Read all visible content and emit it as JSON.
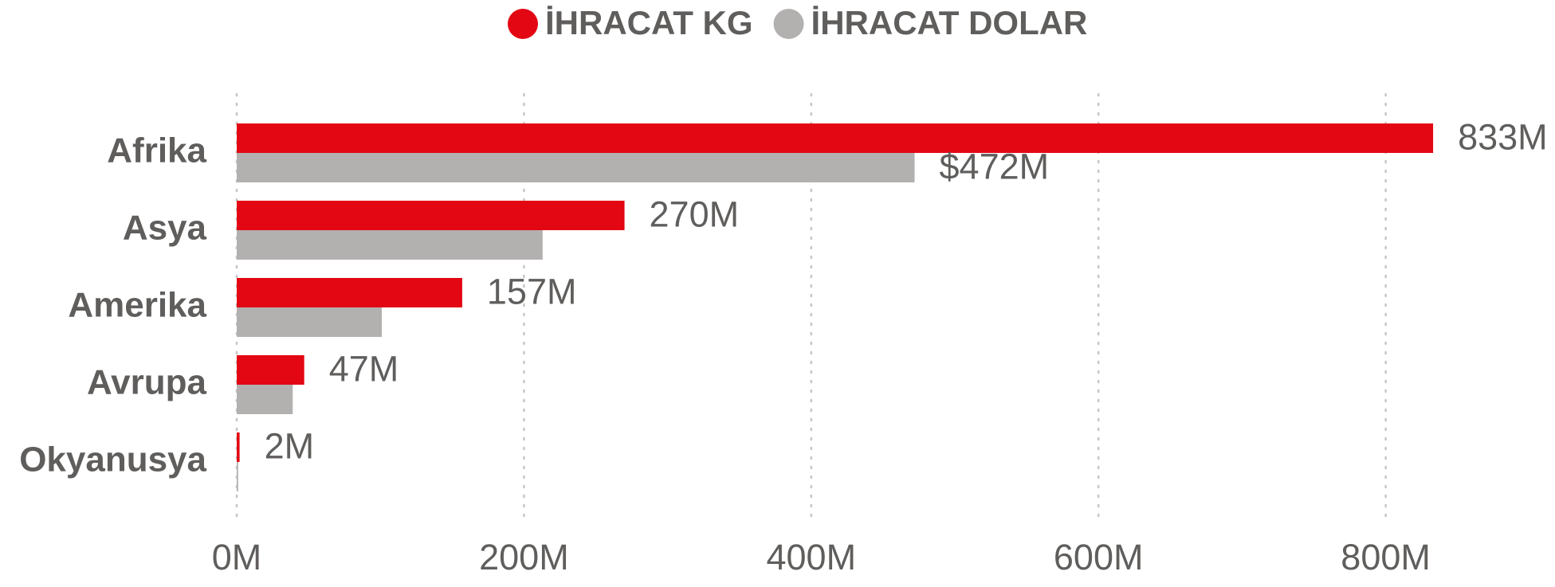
{
  "chart_data": {
    "type": "bar",
    "orientation": "horizontal",
    "categories": [
      "Afrika",
      "Asya",
      "Amerika",
      "Avrupa",
      "Okyanusya"
    ],
    "series": [
      {
        "name": "İHRACAT KG",
        "color": "#e30613",
        "values": [
          833,
          270,
          157,
          47,
          2
        ],
        "value_labels": [
          "833M",
          "270M",
          "157M",
          "47M",
          "2M"
        ]
      },
      {
        "name": "İHRACAT DOLAR",
        "color": "#b3b0b0",
        "values": [
          472,
          213,
          101,
          39,
          1
        ],
        "value_labels": [
          "$472M",
          null,
          null,
          null,
          null
        ]
      }
    ],
    "xlim": [
      0,
      870
    ],
    "xticks": [
      {
        "value": 0,
        "label": "0M"
      },
      {
        "value": 200,
        "label": "200M"
      },
      {
        "value": 400,
        "label": "400M"
      },
      {
        "value": 600,
        "label": "600M"
      },
      {
        "value": 800,
        "label": "800M"
      }
    ],
    "grid": true,
    "legend": "top"
  }
}
